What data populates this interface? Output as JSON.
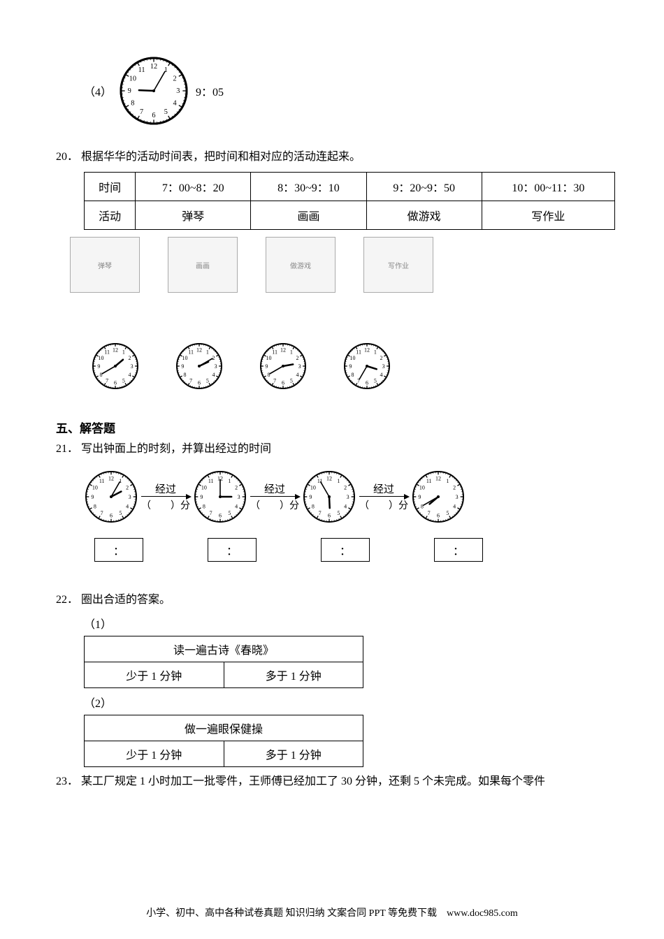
{
  "q4": {
    "label": "（4）",
    "time": "9：05",
    "clock": {
      "size": 100,
      "hour": 9,
      "minute": 5,
      "fancy": true
    }
  },
  "q20": {
    "num": "20．",
    "text": "根据华华的活动时间表，把时间和相对应的活动连起来。",
    "table": {
      "row1_label": "时间",
      "row2_label": "活动",
      "cols": [
        {
          "time": "7：00~8：20",
          "act": "弹琴"
        },
        {
          "time": "8：30~9：10",
          "act": "画画"
        },
        {
          "time": "9：20~9：50",
          "act": "做游戏"
        },
        {
          "time": "10：00~11：30",
          "act": "写作业"
        }
      ]
    },
    "images": [
      "弹琴",
      "画画",
      "做游戏",
      "写作业"
    ],
    "clocks": [
      {
        "hour": 1,
        "minute": 40
      },
      {
        "hour": 2,
        "minute": 10
      },
      {
        "hour": 2,
        "minute": 40
      },
      {
        "hour": 3,
        "minute": 35
      }
    ],
    "clock_size": 70
  },
  "section5": "五、解答题",
  "q21": {
    "num": "21．",
    "text": "写出钟面上的时刻，并算出经过的时间",
    "pass_label": "经过",
    "pass_unit": "（　　）分",
    "clocks": [
      {
        "hour": 2,
        "minute": 5
      },
      {
        "hour": 3,
        "minute": 0
      },
      {
        "hour": 5,
        "minute": 55
      },
      {
        "hour": 7,
        "minute": 40
      }
    ],
    "clock_size": 78,
    "box_text": "："
  },
  "q22": {
    "num": "22．",
    "text": "圈出合适的答案。",
    "sub1": "（1）",
    "t1_title": "读一遍古诗《春晓》",
    "sub2": "（2）",
    "t2_title": "做一遍眼保健操",
    "opt_a": "少于 1 分钟",
    "opt_b": "多于 1 分钟"
  },
  "q23": {
    "num": "23．",
    "text": "某工厂规定 1 小时加工一批零件，王师傅已经加工了 30 分钟，还剩 5 个未完成。如果每个零件"
  },
  "footer": "小学、初中、高中各种试卷真题 知识归纳 文案合同 PPT 等免费下载　www.doc985.com"
}
